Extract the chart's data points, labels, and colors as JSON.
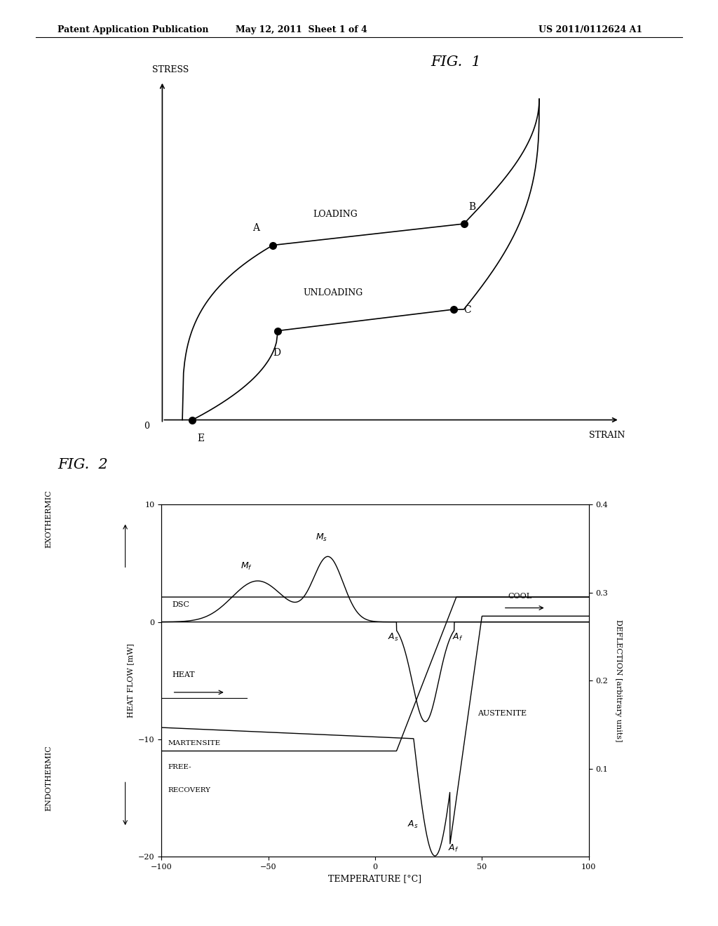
{
  "header_left": "Patent Application Publication",
  "header_mid": "May 12, 2011  Sheet 1 of 4",
  "header_right": "US 2011/0112624 A1",
  "fig1_title": "FIG.  1",
  "fig1_stress_label": "STRESS",
  "fig1_strain_label": "STRAIN",
  "fig1_loading_label": "LOADING",
  "fig1_unloading_label": "UNLOADING",
  "fig2_title": "FIG.  2",
  "fig2_xlabel": "TEMPERATURE [°C]",
  "fig2_ylabel_left": "HEAT FLOW [mW]",
  "fig2_ylabel_right": "DEFLECTION [arbitrary units]",
  "fig2_exothermic": "EXOTHERMIC",
  "fig2_endothermic": "ENDOTHERMIC",
  "dsc_label": "DSC",
  "heat_label": "HEAT",
  "cool_label": "COOL",
  "austenite_label": "AUSTENITE",
  "martensite_line1": "MARTENSITE",
  "martensite_line2": "FREE-",
  "martensite_line3": "RECOVERY",
  "background": "#ffffff",
  "line_color": "#000000"
}
